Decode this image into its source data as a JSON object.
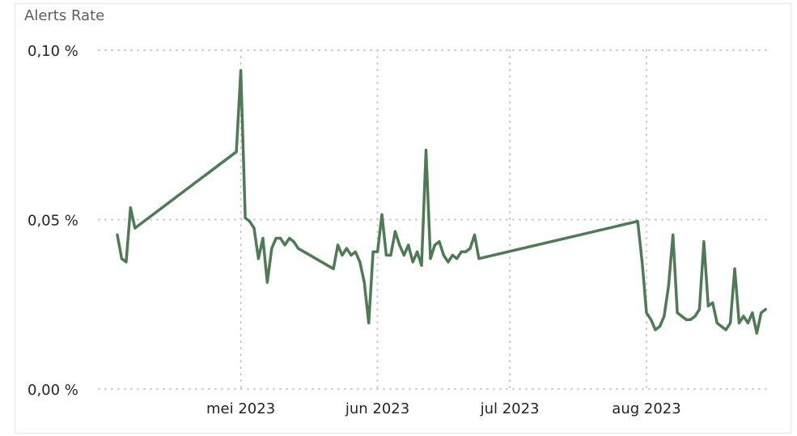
{
  "chart_data": {
    "type": "line",
    "title": "Alerts Rate",
    "xlabel": "",
    "ylabel": "",
    "y_tick_labels": [
      "0,00 %",
      "0,05 %",
      "0,10 %"
    ],
    "y_ticks": [
      0,
      0.05,
      0.1
    ],
    "ylim": [
      0,
      0.1
    ],
    "x_tick_labels": [
      "mei 2023",
      "jun 2023",
      "jul 2023",
      "aug 2023"
    ],
    "x_ticks": [
      "2023-05-01",
      "2023-06-01",
      "2023-07-01",
      "2023-08-01"
    ],
    "xlim": [
      "2023-04-03",
      "2023-08-28"
    ],
    "grid": true,
    "color": "#4e7a55",
    "series": [
      {
        "x": [
          "2023-04-03",
          "2023-04-04",
          "2023-04-05",
          "2023-04-06",
          "2023-04-07",
          "2023-04-30",
          "2023-05-01",
          "2023-05-02",
          "2023-05-03",
          "2023-05-04",
          "2023-05-05",
          "2023-05-06",
          "2023-05-07",
          "2023-05-08",
          "2023-05-09",
          "2023-05-10",
          "2023-05-11",
          "2023-05-12",
          "2023-05-13",
          "2023-05-14",
          "2023-05-22",
          "2023-05-23",
          "2023-05-24",
          "2023-05-25",
          "2023-05-26",
          "2023-05-27",
          "2023-05-28",
          "2023-05-29",
          "2023-05-30",
          "2023-05-31",
          "2023-06-01",
          "2023-06-02",
          "2023-06-03",
          "2023-06-04",
          "2023-06-05",
          "2023-06-06",
          "2023-06-07",
          "2023-06-08",
          "2023-06-09",
          "2023-06-10",
          "2023-06-11",
          "2023-06-12",
          "2023-06-13",
          "2023-06-14",
          "2023-06-15",
          "2023-06-16",
          "2023-06-17",
          "2023-06-18",
          "2023-06-19",
          "2023-06-20",
          "2023-06-21",
          "2023-06-22",
          "2023-06-23",
          "2023-06-24",
          "2023-07-30",
          "2023-07-31",
          "2023-08-01",
          "2023-08-02",
          "2023-08-03",
          "2023-08-04",
          "2023-08-05",
          "2023-08-06",
          "2023-08-07",
          "2023-08-08",
          "2023-08-09",
          "2023-08-10",
          "2023-08-11",
          "2023-08-12",
          "2023-08-13",
          "2023-08-14",
          "2023-08-15",
          "2023-08-16",
          "2023-08-17",
          "2023-08-18",
          "2023-08-19",
          "2023-08-20",
          "2023-08-21",
          "2023-08-22",
          "2023-08-23",
          "2023-08-24",
          "2023-08-25",
          "2023-08-26",
          "2023-08-27",
          "2023-08-28"
        ],
        "y": [
          0.0455,
          0.0385,
          0.0375,
          0.0535,
          0.0475,
          0.07,
          0.094,
          0.0505,
          0.0495,
          0.0475,
          0.0385,
          0.0445,
          0.0315,
          0.0415,
          0.0445,
          0.0445,
          0.0425,
          0.0445,
          0.0435,
          0.0415,
          0.0355,
          0.0425,
          0.0395,
          0.0415,
          0.0395,
          0.0405,
          0.0375,
          0.0315,
          0.0195,
          0.0405,
          0.0405,
          0.0515,
          0.0395,
          0.0395,
          0.0465,
          0.0425,
          0.0395,
          0.0425,
          0.0375,
          0.0405,
          0.0365,
          0.0705,
          0.0385,
          0.0425,
          0.0435,
          0.0395,
          0.0375,
          0.0395,
          0.0385,
          0.0405,
          0.0405,
          0.0415,
          0.0455,
          0.0385,
          0.0495,
          0.0375,
          0.0225,
          0.0205,
          0.0175,
          0.0185,
          0.0215,
          0.0305,
          0.0455,
          0.0225,
          0.0215,
          0.0205,
          0.0205,
          0.0215,
          0.0235,
          0.0435,
          0.0245,
          0.0255,
          0.0195,
          0.0185,
          0.0175,
          0.0195,
          0.0355,
          0.0195,
          0.0215,
          0.0195,
          0.0225,
          0.0165,
          0.0225,
          0.0235
        ]
      }
    ]
  }
}
